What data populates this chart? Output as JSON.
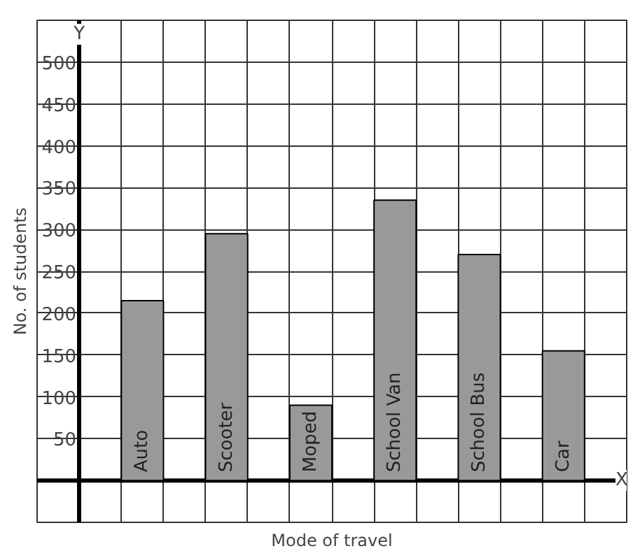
{
  "chart_data": {
    "type": "bar",
    "xlabel": "Mode of travel",
    "ylabel": "No. of students",
    "categories": [
      "Auto",
      "Scooter",
      "Moped",
      "School Van",
      "School Bus",
      "Car"
    ],
    "values": [
      215,
      295,
      90,
      335,
      270,
      155
    ],
    "color": "#999999",
    "ylim": [
      -50,
      550
    ],
    "yticks": [
      50,
      100,
      150,
      200,
      250,
      300,
      350,
      400,
      450,
      500
    ],
    "tick_labels": "y",
    "grid": true,
    "annotations": [
      "Y",
      "X"
    ]
  }
}
